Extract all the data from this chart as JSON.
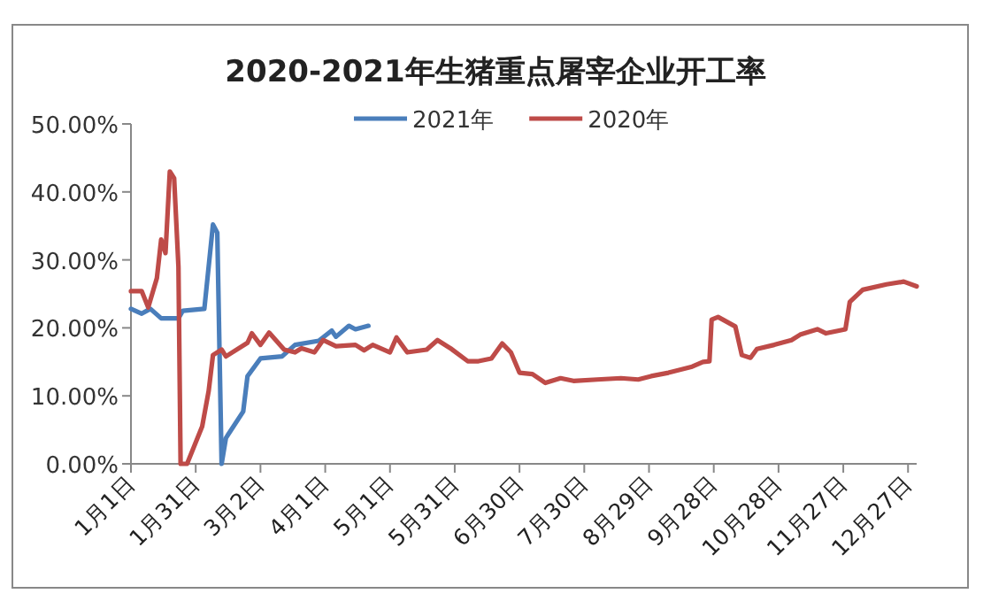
{
  "chart_data": {
    "type": "line",
    "title": "2020-2021年生猪重点屠宰企业开工率",
    "xlim": [
      "--01-01",
      "--12-31"
    ],
    "xticks": [
      {
        "value": "--01-01",
        "label": "1月1日"
      },
      {
        "value": "--01-31",
        "label": "1月31日"
      },
      {
        "value": "--03-02",
        "label": "3月2日"
      },
      {
        "value": "--04-01",
        "label": "4月1日"
      },
      {
        "value": "--05-01",
        "label": "5月1日"
      },
      {
        "value": "--05-31",
        "label": "5月31日"
      },
      {
        "value": "--06-30",
        "label": "6月30日"
      },
      {
        "value": "--07-30",
        "label": "7月30日"
      },
      {
        "value": "--08-29",
        "label": "8月29日"
      },
      {
        "value": "--09-28",
        "label": "9月28日"
      },
      {
        "value": "--10-28",
        "label": "10月28日"
      },
      {
        "value": "--11-27",
        "label": "11月27日"
      },
      {
        "value": "--12-27",
        "label": "12月27日"
      }
    ],
    "ylim": [
      0,
      50
    ],
    "yticks": [
      {
        "value": 0,
        "label": "0.00%"
      },
      {
        "value": 10,
        "label": "10.00%"
      },
      {
        "value": 20,
        "label": "20.00%"
      },
      {
        "value": 30,
        "label": "30.00%"
      },
      {
        "value": 40,
        "label": "40.00%"
      },
      {
        "value": 50,
        "label": "50.00%"
      }
    ],
    "grid": false,
    "legend": "top",
    "marker": "none",
    "line_style": "solid",
    "series": [
      {
        "name": "2021年",
        "color": "#4a7ebb",
        "x": [
          "--01-01",
          "--01-06",
          "--01-10",
          "--01-15",
          "--01-23",
          "--01-25",
          "--02-04",
          "--02-08",
          "--02-10",
          "--02-12",
          "--02-14",
          "--02-22",
          "--02-24",
          "--02-27",
          "--03-02",
          "--03-12",
          "--03-18",
          "--03-29",
          "--04-04",
          "--04-06",
          "--04-12",
          "--04-15",
          "--04-21"
        ],
        "values": [
          22.8,
          22.1,
          22.8,
          21.4,
          21.4,
          22.5,
          22.8,
          35.2,
          34,
          0,
          3.8,
          7.7,
          12.9,
          14.2,
          15.5,
          15.8,
          17.5,
          18.1,
          19.6,
          18.7,
          20.3,
          19.8,
          20.3
        ]
      },
      {
        "name": "2020年",
        "color": "#be4b48",
        "x": [
          "--01-01",
          "--01-06",
          "--01-09",
          "--01-13",
          "--01-15",
          "--01-17",
          "--01-19",
          "--01-21",
          "--01-23",
          "--01-24",
          "--01-27",
          "--02-03",
          "--02-06",
          "--02-08",
          "--02-12",
          "--02-14",
          "--02-24",
          "--02-26",
          "--03-02",
          "--03-06",
          "--03-13",
          "--03-18",
          "--03-21",
          "--03-27",
          "--03-31",
          "--04-06",
          "--04-15",
          "--04-19",
          "--04-23",
          "--05-01",
          "--05-04",
          "--05-09",
          "--05-18",
          "--05-23",
          "--05-29",
          "--06-06",
          "--06-11",
          "--06-17",
          "--06-22",
          "--06-26",
          "--06-30",
          "--07-06",
          "--07-12",
          "--07-19",
          "--07-25",
          "--08-05",
          "--08-16",
          "--08-24",
          "--08-30",
          "--09-07",
          "--09-18",
          "--09-23",
          "--09-26",
          "--09-27",
          "--09-30",
          "--10-08",
          "--10-11",
          "--10-15",
          "--10-18",
          "--10-26",
          "--11-03",
          "--11-07",
          "--11-15",
          "--11-19",
          "--11-28",
          "--11-30",
          "--12-06",
          "--12-17",
          "--12-25",
          "--12-31"
        ],
        "values": [
          25.4,
          25.4,
          23,
          27.3,
          33,
          31,
          43,
          42,
          29,
          0,
          0,
          5.5,
          10.7,
          16,
          16.8,
          15.8,
          17.8,
          19.2,
          17.5,
          19.3,
          16.8,
          16.4,
          17,
          16.4,
          18.2,
          17.3,
          17.5,
          16.7,
          17.5,
          16.4,
          18.6,
          16.4,
          16.8,
          18.2,
          17,
          15.1,
          15.1,
          15.5,
          17.7,
          16.4,
          13.4,
          13.2,
          11.9,
          12.6,
          12.2,
          12.4,
          12.6,
          12.4,
          12.9,
          13.4,
          14.3,
          15,
          15.1,
          21.2,
          21.6,
          20.2,
          16,
          15.6,
          16.9,
          17.5,
          18.2,
          19,
          19.8,
          19.2,
          19.8,
          23.8,
          25.6,
          26.4,
          26.8,
          26.1
        ]
      }
    ]
  }
}
